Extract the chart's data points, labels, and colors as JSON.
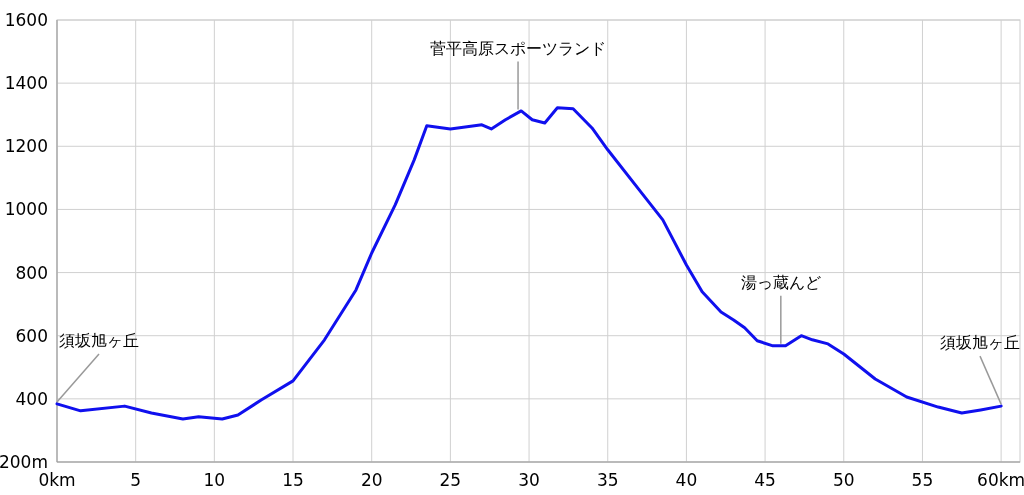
{
  "chart_data": {
    "type": "line",
    "x": [
      0,
      1.5,
      4.3,
      6,
      8,
      9,
      10.5,
      11.5,
      13,
      15,
      17,
      19,
      20,
      21.5,
      22.7,
      23.5,
      25,
      27,
      27.6,
      28.5,
      29.5,
      30.2,
      31,
      31.8,
      32.8,
      34,
      35,
      37,
      38.5,
      40,
      41,
      42.2,
      43,
      43.7,
      44.5,
      45.5,
      46.3,
      47.3,
      48,
      49,
      50,
      52,
      54,
      56,
      57.5,
      58.7,
      60
    ],
    "series": [
      {
        "color": "#1010ee",
        "values": [
          384,
          362,
          377,
          355,
          336,
          343,
          336,
          349,
          397,
          457,
          587,
          745,
          862,
          1015,
          1157,
          1265,
          1255,
          1268,
          1255,
          1284,
          1312,
          1284,
          1274,
          1322,
          1319,
          1258,
          1189,
          1062,
          967,
          824,
          739,
          675,
          650,
          625,
          584,
          568,
          568,
          600,
          587,
          574,
          542,
          463,
          406,
          374,
          355,
          365,
          377
        ]
      }
    ],
    "xlim": [
      0,
      61.2
    ],
    "xticks": [
      {
        "value": 0,
        "label": "0km"
      },
      5,
      10,
      15,
      20,
      25,
      30,
      35,
      40,
      45,
      50,
      55,
      {
        "value": 60,
        "label": "60km"
      }
    ],
    "ylim": [
      200,
      1600
    ],
    "yticks": [
      {
        "value": 200,
        "label": "200m"
      },
      400,
      600,
      800,
      1000,
      1200,
      1400,
      1600
    ],
    "grid": true,
    "marker": "none",
    "line_style": "solid",
    "annotations": [
      {
        "text": "須坂旭ヶ丘",
        "x": 0,
        "y": 384
      },
      {
        "text": "菅平高原スポーツランド",
        "x": 29.3,
        "y": 1310
      },
      {
        "text": "湯っ蔵んど",
        "x": 46,
        "y": 568
      },
      {
        "text": "須坂旭ヶ丘",
        "x": 60,
        "y": 377
      }
    ]
  }
}
